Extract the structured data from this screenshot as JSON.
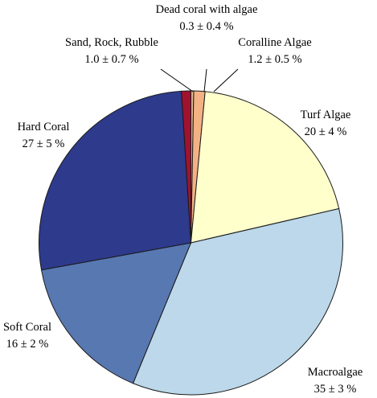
{
  "chart_data": {
    "type": "pie",
    "title": "",
    "unit": "%",
    "start_angle_deg": 0,
    "direction": "clockwise",
    "slices": [
      {
        "name": "Dead coral with algae",
        "value": 0.3,
        "error": 0.4,
        "label": "0.3 ± 0.4 %",
        "color": "#d9b38c"
      },
      {
        "name": "Coralline Algae",
        "value": 1.2,
        "error": 0.5,
        "label": "1.2 ± 0.5 %",
        "color": "#f4b183"
      },
      {
        "name": "Turf Algae",
        "value": 20,
        "error": 4,
        "label": "20 ± 4 %",
        "color": "#ffffcc"
      },
      {
        "name": "Macroalgae",
        "value": 35,
        "error": 3,
        "label": "35 ± 3 %",
        "color": "#bcd8ea"
      },
      {
        "name": "Soft Coral",
        "value": 16,
        "error": 2,
        "label": "16 ± 2 %",
        "color": "#5878b2"
      },
      {
        "name": "Hard Coral",
        "value": 27,
        "error": 5,
        "label": "27 ± 5 %",
        "color": "#2e3a8c"
      },
      {
        "name": "Sand, Rock, Rubble",
        "value": 1.0,
        "error": 0.7,
        "label": "1.0 ± 0.7 %",
        "color": "#a0122e"
      }
    ]
  }
}
